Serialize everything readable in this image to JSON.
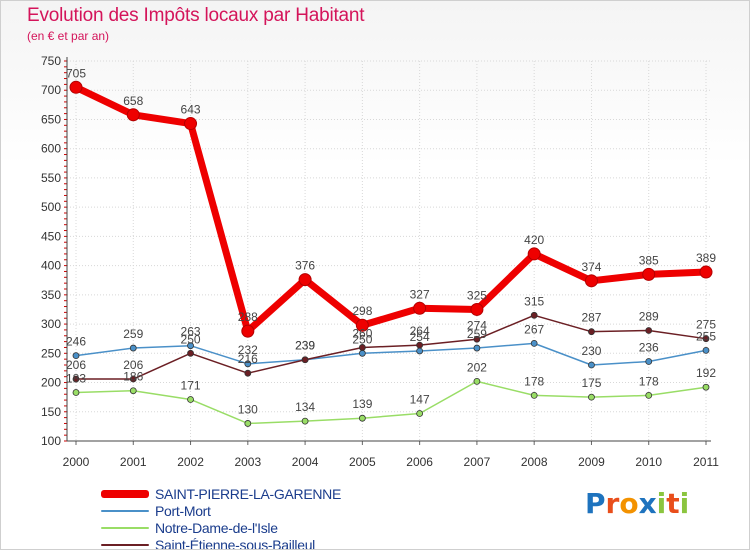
{
  "header": {
    "title": "Evolution des Impôts locaux par Habitant",
    "subtitle": "(en € et par an)"
  },
  "logo": {
    "text": "Proxiti",
    "letters": [
      {
        "ch": "P",
        "color": "#1e73be"
      },
      {
        "ch": "r",
        "color": "#e94e1b"
      },
      {
        "ch": "o",
        "color": "#f39200"
      },
      {
        "ch": "x",
        "color": "#1e73be"
      },
      {
        "ch": "i",
        "color": "#8bc53f"
      },
      {
        "ch": "t",
        "color": "#e94e1b"
      },
      {
        "ch": "i",
        "color": "#8bc53f"
      }
    ]
  },
  "chart_data": {
    "type": "line",
    "title": "Evolution des Impôts locaux par Habitant",
    "subtitle": "(en € et par an)",
    "xlabel": "",
    "ylabel": "",
    "categories": [
      "2000",
      "2001",
      "2002",
      "2003",
      "2004",
      "2005",
      "2006",
      "2007",
      "2008",
      "2009",
      "2010",
      "2011"
    ],
    "ylim": [
      100,
      750
    ],
    "yticks": [
      100,
      150,
      200,
      250,
      300,
      350,
      400,
      450,
      500,
      550,
      600,
      650,
      700,
      750
    ],
    "grid": true,
    "legend_position": "bottom-left",
    "series": [
      {
        "name": "SAINT-PIERRE-LA-GARENNE",
        "color": "#ee0000",
        "width": 7,
        "values": [
          705,
          658,
          643,
          288,
          376,
          298,
          327,
          325,
          420,
          374,
          385,
          389
        ],
        "labels": [
          "705",
          "658",
          "643",
          "288",
          "376",
          "298",
          "327",
          "325",
          "420",
          "374",
          "385",
          "389"
        ]
      },
      {
        "name": "Port-Mort",
        "color": "#4a90c8",
        "width": 1.5,
        "values": [
          246,
          259,
          263,
          232,
          239,
          250,
          254,
          259,
          267,
          230,
          236,
          255
        ],
        "labels": [
          "246",
          "259",
          "263",
          "232",
          "239",
          "250",
          "254",
          "259",
          "267",
          "230",
          "236",
          "255"
        ]
      },
      {
        "name": "Notre-Dame-de-l'Isle",
        "color": "#99dd66",
        "width": 1.5,
        "values": [
          183,
          186,
          171,
          130,
          134,
          139,
          147,
          202,
          178,
          175,
          178,
          192
        ],
        "labels": [
          "183",
          "186",
          "171",
          "130",
          "134",
          "139",
          "147",
          "202",
          "178",
          "175",
          "178",
          "192"
        ]
      },
      {
        "name": "Saint-Étienne-sous-Bailleul",
        "color": "#6b1f24",
        "width": 1.5,
        "values": [
          206,
          206,
          250,
          216,
          239,
          260,
          264,
          274,
          315,
          287,
          289,
          275
        ],
        "labels": [
          "206",
          "206",
          "250",
          "216",
          "239",
          "260",
          "264",
          "274",
          "315",
          "287",
          "289",
          "275"
        ]
      }
    ]
  }
}
